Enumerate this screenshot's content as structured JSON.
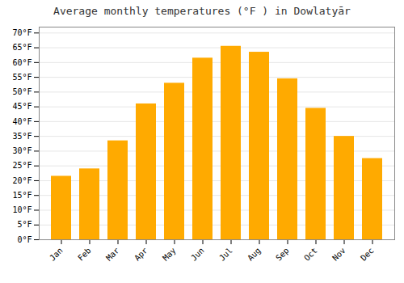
{
  "chart_data": {
    "type": "bar",
    "title": "Average monthly temperatures (°F ) in Dowlatyār",
    "categories": [
      "Jan",
      "Feb",
      "Mar",
      "Apr",
      "May",
      "Jun",
      "Jul",
      "Aug",
      "Sep",
      "Oct",
      "Nov",
      "Dec"
    ],
    "values": [
      21.5,
      24.0,
      33.5,
      46.0,
      53.0,
      61.5,
      65.5,
      63.5,
      54.5,
      44.5,
      35.0,
      27.5
    ],
    "color": "#FFAA00",
    "ylim": [
      0,
      72
    ],
    "yticks": [
      {
        "value": 0,
        "label": "0°F"
      },
      {
        "value": 5,
        "label": "5°F"
      },
      {
        "value": 10,
        "label": "10°F"
      },
      {
        "value": 15,
        "label": "15°F"
      },
      {
        "value": 20,
        "label": "20°F"
      },
      {
        "value": 25,
        "label": "25°F"
      },
      {
        "value": 30,
        "label": "30°F"
      },
      {
        "value": 35,
        "label": "35°F"
      },
      {
        "value": 40,
        "label": "40°F"
      },
      {
        "value": 45,
        "label": "45°F"
      },
      {
        "value": 50,
        "label": "50°F"
      },
      {
        "value": 55,
        "label": "55°F"
      },
      {
        "value": 60,
        "label": "60°F"
      },
      {
        "value": 65,
        "label": "65°F"
      },
      {
        "value": 70,
        "label": "70°F"
      }
    ],
    "grid": true
  }
}
